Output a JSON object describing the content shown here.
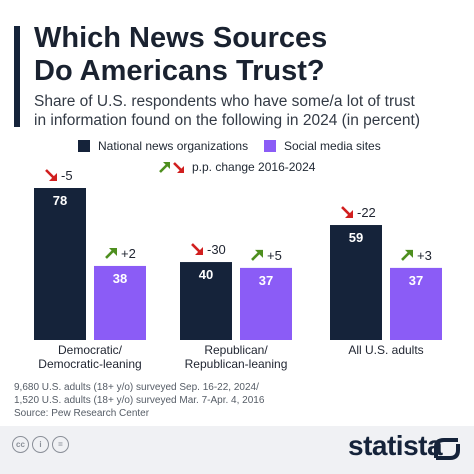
{
  "header": {
    "title_line1": "Which News Sources",
    "title_line2": "Do Americans Trust?",
    "subtitle_line1": "Share of U.S. respondents who have some/a lot of trust",
    "subtitle_line2": "in information found on the following in 2024 (in percent)"
  },
  "legend": {
    "national": "National news organizations",
    "social": "Social media sites",
    "change": "p.p. change 2016-2024"
  },
  "colors": {
    "national": "#15233a",
    "social": "#8b5cf6",
    "up_arrow": "#4e8f1f",
    "down_arrow": "#d11f1f"
  },
  "chart_data": {
    "type": "bar",
    "categories": [
      [
        "Democratic/",
        "Democratic-leaning"
      ],
      [
        "Republican/",
        "Republican-leaning"
      ],
      [
        "All U.S. adults"
      ]
    ],
    "series": [
      {
        "name": "National news organizations",
        "values": [
          78,
          40,
          59
        ],
        "changes": [
          "-5",
          "-30",
          "-22"
        ]
      },
      {
        "name": "Social media sites",
        "values": [
          38,
          37,
          37
        ],
        "changes": [
          "+2",
          "+5",
          "+3"
        ]
      }
    ],
    "ylim": [
      0,
      78
    ],
    "grid": false,
    "legend_position": "top"
  },
  "source": {
    "line1": "9,680 U.S. adults (18+ y/o) surveyed Sep. 16-22, 2024/",
    "line2": "1,520 U.S. adults (18+ y/o) surveyed Mar. 7-Apr. 4, 2016",
    "line3": "Source: Pew Research Center"
  },
  "footer": {
    "brand": "statista",
    "license_icons": [
      "cc-icon",
      "person-icon",
      "equals-icon"
    ],
    "license_glyphs": [
      "cc",
      "i",
      "="
    ]
  }
}
